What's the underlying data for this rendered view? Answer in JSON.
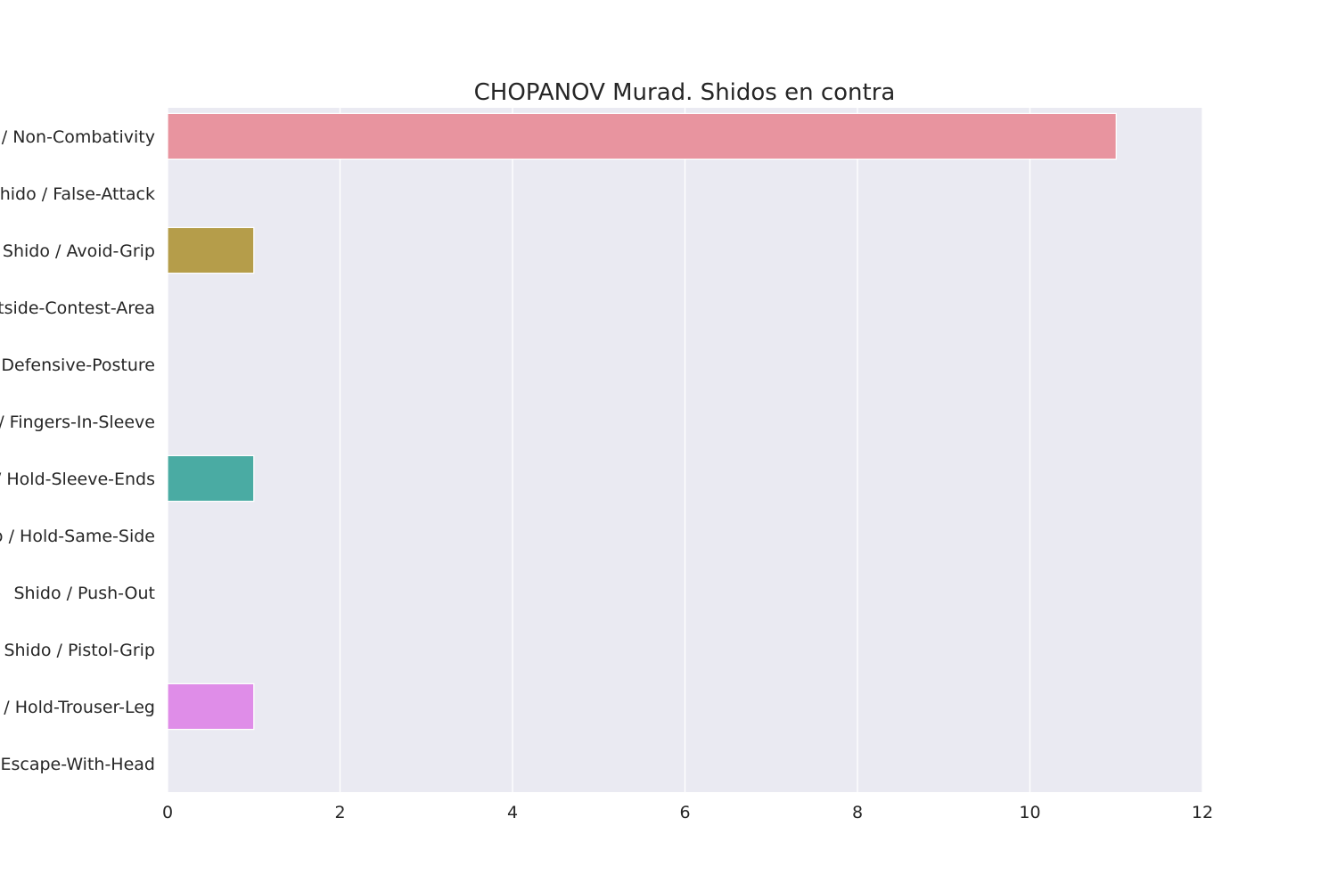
{
  "chart_data": {
    "type": "bar",
    "orientation": "horizontal",
    "title": "CHOPANOV Murad. Shidos en contra",
    "xlabel": "",
    "ylabel": "",
    "xlim": [
      0,
      12
    ],
    "xticks": [
      0,
      2,
      4,
      6,
      8,
      10,
      12
    ],
    "grid": true,
    "categories": [
      "Shido / Non-Combativity",
      "Shido / False-Attack",
      "Shido / Avoid-Grip",
      "Shido / Outside-Contest-Area",
      "Shido / Defensive-Posture",
      "Shido / Fingers-In-Sleeve",
      "Shido / Hold-Sleeve-Ends",
      "Shido / Hold-Same-Side",
      "Shido / Push-Out",
      "Shido / Pistol-Grip",
      "Shido / Hold-Trouser-Leg",
      "Shido / Escape-With-Head"
    ],
    "values": [
      11,
      0,
      1,
      0,
      0,
      0,
      1,
      0,
      0,
      0,
      1,
      0
    ],
    "colors": [
      "#e8949f",
      "#d4a07c",
      "#b59d4a",
      "#9ea83a",
      "#6aab3d",
      "#4caf7a",
      "#4aaba3",
      "#49a8b8",
      "#5aa7d6",
      "#a9a6ec",
      "#df8de8",
      "#e68fc4"
    ],
    "background": "#eaeaf2",
    "gridline_color": "#ffffff"
  }
}
